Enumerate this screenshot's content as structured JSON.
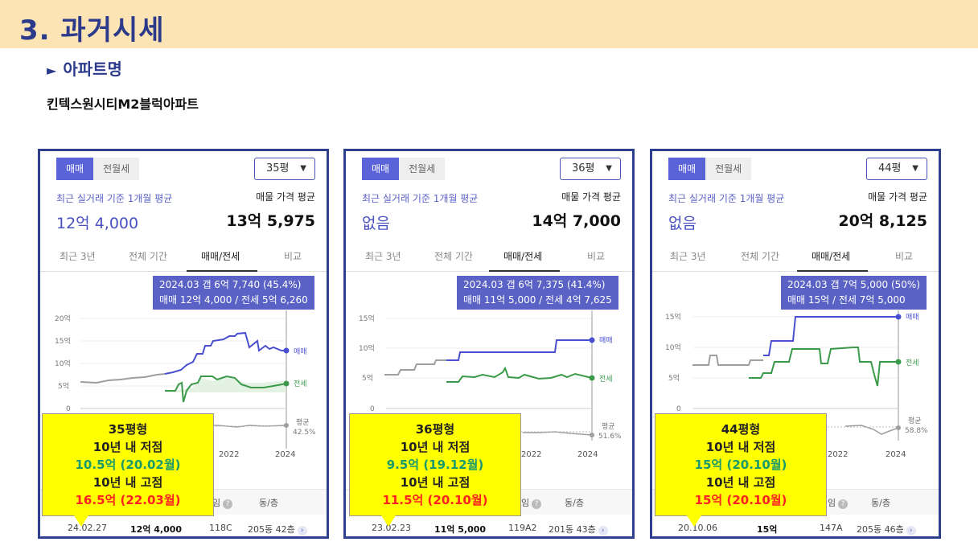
{
  "header": {
    "title": "3. 과거시세"
  },
  "section": {
    "arrow": "►",
    "label": "아파트명"
  },
  "apartment": {
    "name": "킨텍스원시티M2블럭아파트"
  },
  "panels": [
    {
      "seg_sale": "매매",
      "seg_rent": "전월세",
      "size": "35평",
      "caret": "▼",
      "recent_caption": "최근 실거래 기준 1개월 평균",
      "recent_value": "12억 4,000",
      "listing_caption": "매물 가격 평균",
      "listing_value": "13억 5,975",
      "tabs": [
        "최근 3년",
        "전체 기간",
        "매매/전세",
        "비교"
      ],
      "tooltip_line1": "2024.03  갭 6억 7,740 (45.4%)",
      "tooltip_line2": "매매 12억 4,000 / 전세 5억 6,260",
      "yticks": [
        "20억",
        "15억",
        "10억",
        "5억",
        "0"
      ],
      "series_sale": "매매",
      "series_jeonse": "전세",
      "series_ratio": "평균",
      "ratio_value": "42.5%",
      "x_years": [
        "2022",
        "2024"
      ],
      "row_header": [
        "임",
        "동/층"
      ],
      "deal": {
        "date": "24.02.27",
        "price": "12억 4,000",
        "area": "118C",
        "dongfloor": "205동 42층"
      },
      "note": {
        "title": "35평형",
        "low_label": "10년 내 저점",
        "low_value": "10.5억 (20.02월)",
        "high_label": "10년 내 고점",
        "high_value": "16.5억 (22.03월)"
      }
    },
    {
      "seg_sale": "매매",
      "seg_rent": "전월세",
      "size": "36평",
      "caret": "▼",
      "recent_caption": "최근 실거래 기준 1개월 평균",
      "recent_value": "없음",
      "listing_caption": "매물 가격 평균",
      "listing_value": "14억 7,000",
      "tabs": [
        "최근 3년",
        "전체 기간",
        "매매/전세",
        "비교"
      ],
      "tooltip_line1": "2024.03  갭 6억 7,375 (41.4%)",
      "tooltip_line2": "매매 11억 5,000 / 전세 4억 7,625",
      "yticks": [
        "15억",
        "10억",
        "5억",
        "0"
      ],
      "series_sale": "매매",
      "series_jeonse": "전세",
      "series_ratio": "평균",
      "ratio_value": "51.6%",
      "x_years": [
        "2022",
        "2024"
      ],
      "row_header": [
        "임",
        "동/층"
      ],
      "deal": {
        "date": "23.02.23",
        "price": "11억 5,000",
        "area": "119A2",
        "dongfloor": "201동 43층"
      },
      "note": {
        "title": "36평형",
        "low_label": "10년 내 저점",
        "low_value": "9.5억 (19.12월)",
        "high_label": "10년 내 고점",
        "high_value": "11.5억 (20.10월)"
      }
    },
    {
      "seg_sale": "매매",
      "seg_rent": "전월세",
      "size": "44평",
      "caret": "▼",
      "recent_caption": "최근 실거래 기준 1개월 평균",
      "recent_value": "없음",
      "listing_caption": "매물 가격 평균",
      "listing_value": "20억 8,125",
      "tabs": [
        "최근 3년",
        "전체 기간",
        "매매/전세",
        "비교"
      ],
      "tooltip_line1": "2024.03  갭 7억 5,000 (50%)",
      "tooltip_line2": "매매 15억 / 전세 7억 5,000",
      "yticks": [
        "15억",
        "10억",
        "5억",
        "0"
      ],
      "series_sale": "매매",
      "series_jeonse": "전세",
      "series_ratio": "평균",
      "ratio_value": "58.8%",
      "x_years": [
        "2022",
        "2024"
      ],
      "row_header": [
        "임",
        "동/층"
      ],
      "deal": {
        "date": "20.10.06",
        "price": "15억",
        "area": "147A",
        "dongfloor": "205동 46층"
      },
      "note": {
        "title": "44평형",
        "low_label": "10년 내 저점",
        "low_value": "15억 (20.10월)",
        "high_label": "10년 내 고점",
        "high_value": "15억 (20.10월)"
      }
    }
  ],
  "colors": {
    "header_band": "#fce4b4",
    "title": "#2b3a8a",
    "sale_line": "#4a4fd0",
    "jeonse_line": "#3a9a4a",
    "past_line": "#9e9e9e",
    "note_bg": "#ffff00",
    "note_green": "#1a9a6a",
    "note_red": "#ff2020"
  }
}
